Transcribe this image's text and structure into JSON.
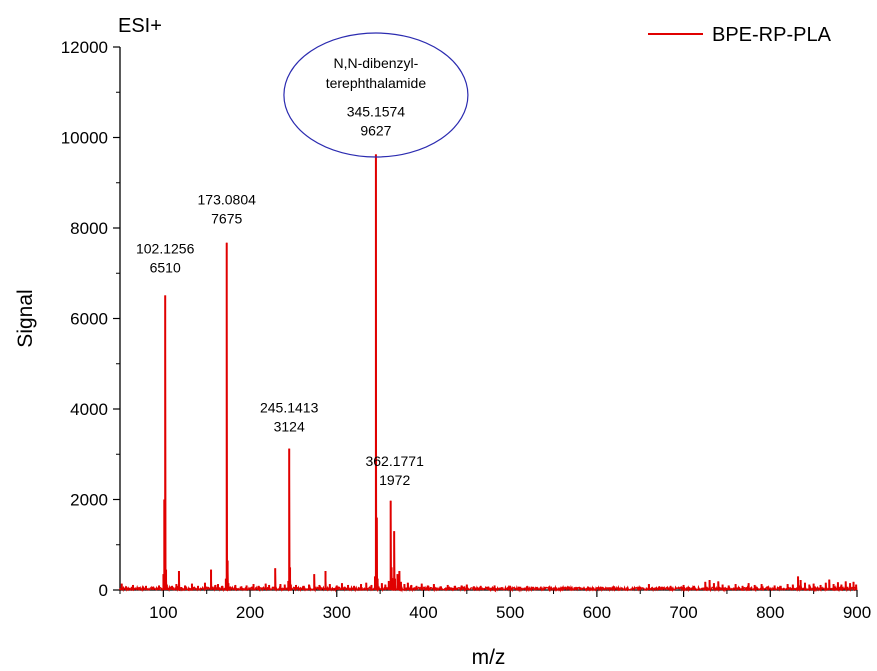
{
  "chart_data": {
    "type": "line",
    "mode_label": "ESI+",
    "xlabel": "m/z",
    "ylabel": "Signal",
    "xlim": [
      50,
      900
    ],
    "ylim": [
      0,
      12000
    ],
    "x_ticks": [
      100,
      200,
      300,
      400,
      500,
      600,
      700,
      800,
      900
    ],
    "y_ticks": [
      0,
      2000,
      4000,
      6000,
      8000,
      10000,
      12000
    ],
    "legend": {
      "position": "top-right",
      "entries": [
        {
          "name": "BPE-RP-PLA",
          "color": "#e00000"
        }
      ]
    },
    "series": [
      {
        "name": "BPE-RP-PLA",
        "color": "#e00000",
        "peaks": [
          [
            52,
            140
          ],
          [
            57,
            80
          ],
          [
            65,
            110
          ],
          [
            72,
            60
          ],
          [
            80,
            90
          ],
          [
            88,
            70
          ],
          [
            95,
            100
          ],
          [
            100.1,
            350
          ],
          [
            101.1,
            2000
          ],
          [
            102.1256,
            6510
          ],
          [
            103.1,
            450
          ],
          [
            104,
            120
          ],
          [
            110,
            90
          ],
          [
            115,
            130
          ],
          [
            118,
            420
          ],
          [
            125,
            100
          ],
          [
            133,
            140
          ],
          [
            140,
            90
          ],
          [
            148,
            160
          ],
          [
            155,
            450
          ],
          [
            160,
            110
          ],
          [
            163,
            130
          ],
          [
            168,
            90
          ],
          [
            172.1,
            250
          ],
          [
            173.0804,
            7675
          ],
          [
            174.1,
            650
          ],
          [
            175,
            150
          ],
          [
            183,
            110
          ],
          [
            190,
            80
          ],
          [
            196,
            100
          ],
          [
            204,
            130
          ],
          [
            210,
            90
          ],
          [
            218,
            140
          ],
          [
            222,
            110
          ],
          [
            229,
            480
          ],
          [
            235,
            130
          ],
          [
            240,
            120
          ],
          [
            244.1,
            200
          ],
          [
            245.1413,
            3124
          ],
          [
            246.1,
            500
          ],
          [
            247,
            120
          ],
          [
            253,
            110
          ],
          [
            262,
            90
          ],
          [
            268,
            120
          ],
          [
            274,
            350
          ],
          [
            280,
            110
          ],
          [
            287,
            420
          ],
          [
            292,
            130
          ],
          [
            300,
            100
          ],
          [
            306,
            150
          ],
          [
            313,
            110
          ],
          [
            320,
            90
          ],
          [
            328,
            130
          ],
          [
            334,
            160
          ],
          [
            340,
            110
          ],
          [
            344.1,
            300
          ],
          [
            345.1574,
            9627
          ],
          [
            346.2,
            1600
          ],
          [
            347.1,
            250
          ],
          [
            352,
            150
          ],
          [
            356,
            120
          ],
          [
            360,
            200
          ],
          [
            362.1771,
            1972
          ],
          [
            363.2,
            500
          ],
          [
            364.2,
            260
          ],
          [
            366.2,
            1300
          ],
          [
            367.2,
            250
          ],
          [
            370,
            350
          ],
          [
            372.2,
            420
          ],
          [
            374,
            180
          ],
          [
            378,
            130
          ],
          [
            382,
            160
          ],
          [
            386,
            110
          ],
          [
            392,
            90
          ],
          [
            398,
            140
          ],
          [
            405,
            100
          ],
          [
            412,
            130
          ],
          [
            420,
            80
          ],
          [
            428,
            110
          ],
          [
            436,
            90
          ],
          [
            444,
            100
          ],
          [
            450,
            120
          ],
          [
            458,
            80
          ],
          [
            466,
            90
          ],
          [
            475,
            70
          ],
          [
            482,
            100
          ],
          [
            490,
            60
          ],
          [
            500,
            90
          ],
          [
            510,
            70
          ],
          [
            520,
            80
          ],
          [
            530,
            60
          ],
          [
            545,
            80
          ],
          [
            560,
            70
          ],
          [
            575,
            60
          ],
          [
            590,
            70
          ],
          [
            605,
            60
          ],
          [
            620,
            80
          ],
          [
            635,
            60
          ],
          [
            650,
            70
          ],
          [
            660,
            130
          ],
          [
            672,
            80
          ],
          [
            685,
            90
          ],
          [
            700,
            110
          ],
          [
            712,
            90
          ],
          [
            725,
            180
          ],
          [
            730,
            220
          ],
          [
            735,
            150
          ],
          [
            740,
            190
          ],
          [
            745,
            120
          ],
          [
            752,
            100
          ],
          [
            760,
            130
          ],
          [
            768,
            90
          ],
          [
            775,
            150
          ],
          [
            782,
            110
          ],
          [
            790,
            130
          ],
          [
            797,
            80
          ],
          [
            805,
            100
          ],
          [
            812,
            90
          ],
          [
            820,
            130
          ],
          [
            826,
            120
          ],
          [
            832,
            300
          ],
          [
            835,
            220
          ],
          [
            840,
            160
          ],
          [
            845,
            120
          ],
          [
            850,
            140
          ],
          [
            858,
            110
          ],
          [
            864,
            160
          ],
          [
            868,
            230
          ],
          [
            873,
            130
          ],
          [
            878,
            170
          ],
          [
            882,
            120
          ],
          [
            887,
            190
          ],
          [
            892,
            150
          ],
          [
            896,
            180
          ],
          [
            899,
            120
          ]
        ]
      }
    ],
    "annotations": [
      {
        "mz": "102.1256",
        "intensity": "6510",
        "x": 102.1256,
        "y": 6510
      },
      {
        "mz": "173.0804",
        "intensity": "7675",
        "x": 173.0804,
        "y": 7675
      },
      {
        "mz": "245.1413",
        "intensity": "3124",
        "x": 245.1413,
        "y": 3124
      },
      {
        "mz": "345.1574",
        "intensity": "9627",
        "x": 345.1574,
        "y": 9627
      },
      {
        "mz": "362.1771",
        "intensity": "1972",
        "x": 362.1771,
        "y": 1972
      }
    ],
    "callout": {
      "lines": [
        "N,N-dibenzyl-",
        "terephthalamide"
      ],
      "target_mz": "345.1574",
      "ellipse_color": "#2b2bb0"
    }
  }
}
